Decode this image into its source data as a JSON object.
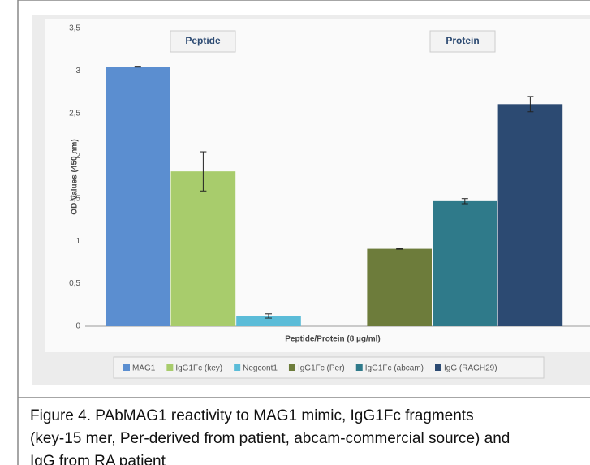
{
  "chart_data": {
    "type": "bar",
    "y_axis_label": "OD Values (450 nm)",
    "x_axis_label": "Peptide/Protein (8 µg/ml)",
    "annotations": [
      "Peptide",
      "Protein"
    ],
    "ylim": [
      0,
      3.5
    ],
    "yticks": [
      0,
      {
        "value": 0.5,
        "label": "0,5"
      },
      1,
      {
        "value": 1.5,
        "label": "1,5"
      },
      2,
      {
        "value": 2.5,
        "label": "2,5"
      },
      3,
      {
        "value": 3.5,
        "label": "3,5"
      }
    ],
    "grid": false,
    "legend": "bottom",
    "series": [
      {
        "name": "MAG1",
        "color": "#5b8ed0",
        "values": [
          3.05
        ],
        "errors": [
          0.005
        ]
      },
      {
        "name": "IgG1Fc (key)",
        "color": "#a8cc6c",
        "values": [
          1.82
        ],
        "errors": [
          0.23
        ]
      },
      {
        "name": "Negcont1",
        "color": "#5bbcd8",
        "values": [
          0.12
        ],
        "errors": [
          0.025
        ]
      },
      {
        "name": "IgG1Fc (Per)",
        "color": "#6d7c3b",
        "values": [
          0.91
        ],
        "errors": [
          0.005
        ]
      },
      {
        "name": "IgG1Fc (abcam)",
        "color": "#2f7a8a",
        "values": [
          1.47
        ],
        "errors": [
          0.03
        ]
      },
      {
        "name": "IgG (RAGH29)",
        "color": "#2c4a72",
        "values": [
          2.61
        ],
        "errors": [
          0.09
        ]
      }
    ]
  },
  "caption": [
    "Figure 4. PAbMAG1 reactivity to MAG1 mimic, IgG1Fc fragments",
    "(key-15 mer, Per-derived from patient, abcam-commercial source) and",
    "IgG from RA patient"
  ]
}
